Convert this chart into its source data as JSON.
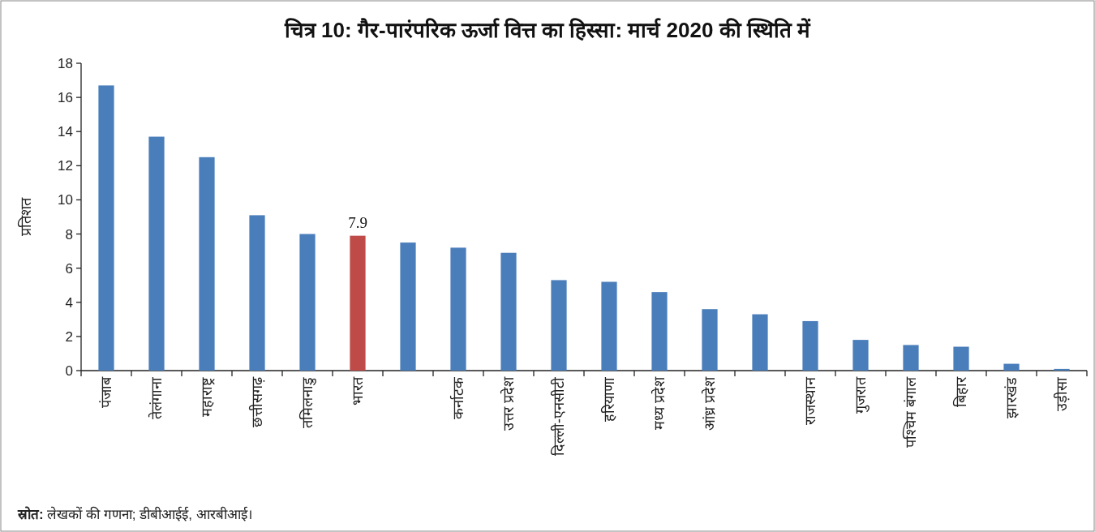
{
  "chart_data": {
    "type": "bar",
    "title": "चित्र 10: गैर-पारंपरिक ऊर्जा वित्त का हिस्सा: मार्च 2020 की स्थिति में",
    "ylabel": "प्रतिशत",
    "categories": [
      "पंजाब",
      "तेलंगाना",
      "महाराष्ट्र",
      "छत्तीसगढ़",
      "तमिलनाडु",
      "भारत",
      null,
      "कर्नाटक",
      "उत्तर प्रदेश",
      "दिल्ली-एनसीटी",
      "हरियाणा",
      "मध्य प्रदेश",
      "आंध्र प्रदेश",
      null,
      "राजस्थान",
      "गुजरात",
      "पश्चिम बंगाल",
      "बिहार",
      "झारखंड",
      "उड़ीसा"
    ],
    "values": [
      16.7,
      13.7,
      12.5,
      9.1,
      8.0,
      7.9,
      7.5,
      7.2,
      6.9,
      5.3,
      5.2,
      4.6,
      3.6,
      3.3,
      2.9,
      1.8,
      1.5,
      1.4,
      0.4,
      0.1
    ],
    "colors": [
      "#4a7ebb",
      "#4a7ebb",
      "#4a7ebb",
      "#4a7ebb",
      "#4a7ebb",
      "#be4b48",
      "#4a7ebb",
      "#4a7ebb",
      "#4a7ebb",
      "#4a7ebb",
      "#4a7ebb",
      "#4a7ebb",
      "#4a7ebb",
      "#4a7ebb",
      "#4a7ebb",
      "#4a7ebb",
      "#4a7ebb",
      "#4a7ebb",
      "#4a7ebb",
      "#4a7ebb"
    ],
    "value_labels": [
      null,
      null,
      null,
      null,
      null,
      "7.9",
      null,
      null,
      null,
      null,
      null,
      null,
      null,
      null,
      null,
      null,
      null,
      null,
      null,
      null
    ],
    "ylim": [
      0,
      18
    ],
    "yticks": [
      0,
      2,
      4,
      6,
      8,
      10,
      12,
      14,
      16,
      18
    ],
    "grid": false,
    "annotations": [
      "स्रोत: लेखकों की गणना; डीबीआईई, आरबीआई।"
    ]
  }
}
